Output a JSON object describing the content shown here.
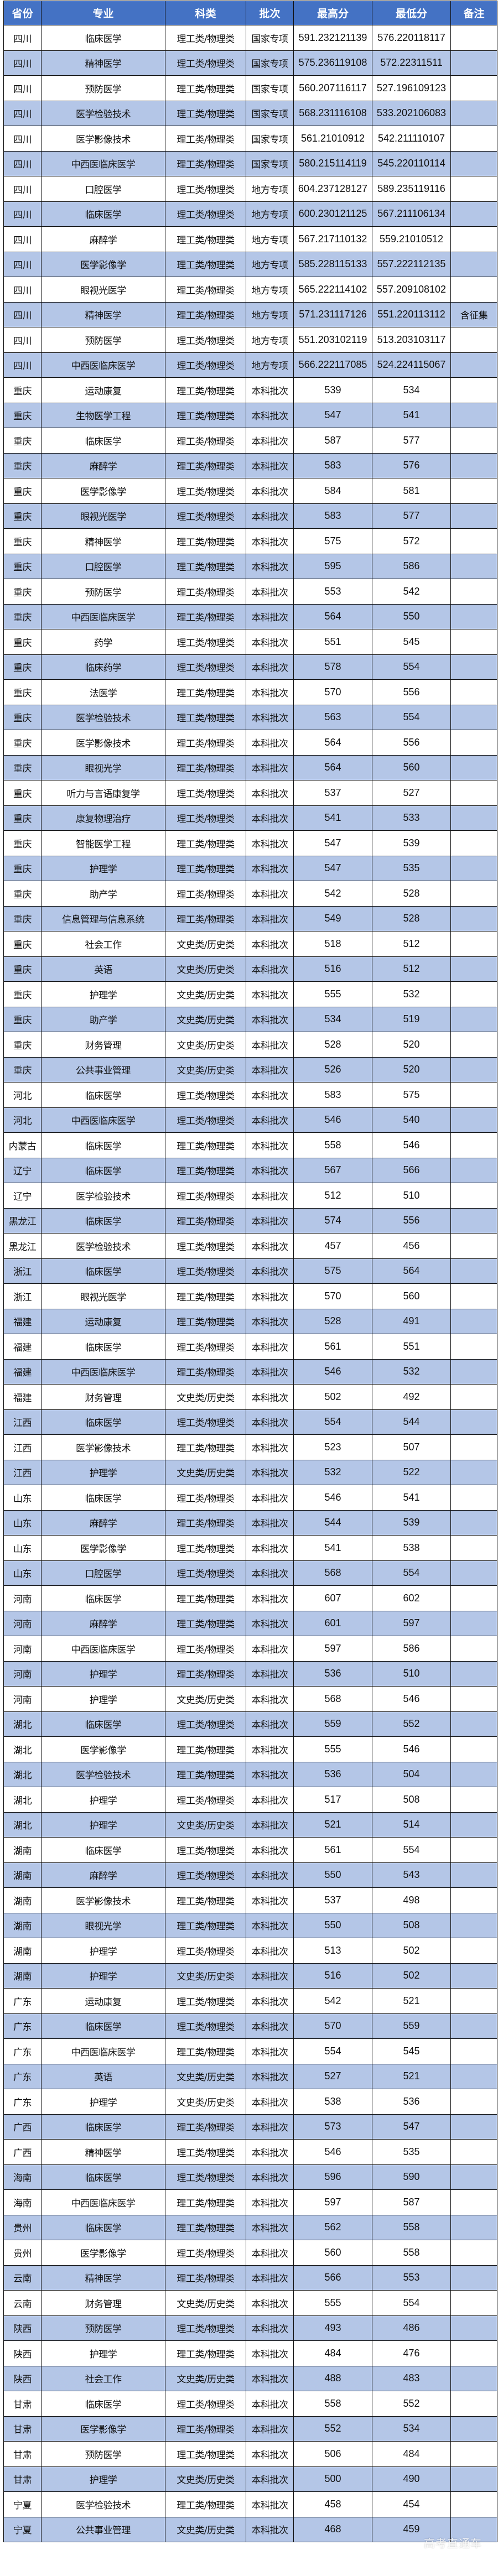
{
  "colors": {
    "header_bg": "#4472C4",
    "alt_row_bg": "#B4C6E7",
    "row_bg": "#FFFFFF"
  },
  "headers": [
    "省份",
    "专业",
    "科类",
    "批次",
    "最高分",
    "最低分",
    "备注"
  ],
  "rows": [
    [
      "四川",
      "临床医学",
      "理工类/物理类",
      "国家专项",
      "591.232121139",
      "576.220118117",
      ""
    ],
    [
      "四川",
      "精神医学",
      "理工类/物理类",
      "国家专项",
      "575.236119108",
      "572.22311511",
      ""
    ],
    [
      "四川",
      "预防医学",
      "理工类/物理类",
      "国家专项",
      "560.207116117",
      "527.196109123",
      ""
    ],
    [
      "四川",
      "医学检验技术",
      "理工类/物理类",
      "国家专项",
      "568.231116108",
      "533.202106083",
      ""
    ],
    [
      "四川",
      "医学影像技术",
      "理工类/物理类",
      "国家专项",
      "561.21010912",
      "542.211110107",
      ""
    ],
    [
      "四川",
      "中西医临床医学",
      "理工类/物理类",
      "国家专项",
      "580.215114119",
      "545.220110114",
      ""
    ],
    [
      "四川",
      "口腔医学",
      "理工类/物理类",
      "地方专项",
      "604.237128127",
      "589.235119116",
      ""
    ],
    [
      "四川",
      "临床医学",
      "理工类/物理类",
      "地方专项",
      "600.230121125",
      "567.211106134",
      ""
    ],
    [
      "四川",
      "麻醉学",
      "理工类/物理类",
      "地方专项",
      "567.217110132",
      "559.21010512",
      ""
    ],
    [
      "四川",
      "医学影像学",
      "理工类/物理类",
      "地方专项",
      "585.228115133",
      "557.222112135",
      ""
    ],
    [
      "四川",
      "眼视光医学",
      "理工类/物理类",
      "地方专项",
      "565.222114102",
      "557.209108102",
      ""
    ],
    [
      "四川",
      "精神医学",
      "理工类/物理类",
      "地方专项",
      "571.231117126",
      "551.220113112",
      "含征集"
    ],
    [
      "四川",
      "预防医学",
      "理工类/物理类",
      "地方专项",
      "551.203102119",
      "513.203103117",
      ""
    ],
    [
      "四川",
      "中西医临床医学",
      "理工类/物理类",
      "地方专项",
      "566.222117085",
      "524.224115067",
      ""
    ],
    [
      "重庆",
      "运动康复",
      "理工类/物理类",
      "本科批次",
      "539",
      "534",
      ""
    ],
    [
      "重庆",
      "生物医学工程",
      "理工类/物理类",
      "本科批次",
      "547",
      "541",
      ""
    ],
    [
      "重庆",
      "临床医学",
      "理工类/物理类",
      "本科批次",
      "587",
      "577",
      ""
    ],
    [
      "重庆",
      "麻醉学",
      "理工类/物理类",
      "本科批次",
      "583",
      "576",
      ""
    ],
    [
      "重庆",
      "医学影像学",
      "理工类/物理类",
      "本科批次",
      "584",
      "581",
      ""
    ],
    [
      "重庆",
      "眼视光医学",
      "理工类/物理类",
      "本科批次",
      "583",
      "577",
      ""
    ],
    [
      "重庆",
      "精神医学",
      "理工类/物理类",
      "本科批次",
      "575",
      "572",
      ""
    ],
    [
      "重庆",
      "口腔医学",
      "理工类/物理类",
      "本科批次",
      "595",
      "586",
      ""
    ],
    [
      "重庆",
      "预防医学",
      "理工类/物理类",
      "本科批次",
      "553",
      "542",
      ""
    ],
    [
      "重庆",
      "中西医临床医学",
      "理工类/物理类",
      "本科批次",
      "564",
      "550",
      ""
    ],
    [
      "重庆",
      "药学",
      "理工类/物理类",
      "本科批次",
      "551",
      "545",
      ""
    ],
    [
      "重庆",
      "临床药学",
      "理工类/物理类",
      "本科批次",
      "578",
      "554",
      ""
    ],
    [
      "重庆",
      "法医学",
      "理工类/物理类",
      "本科批次",
      "570",
      "556",
      ""
    ],
    [
      "重庆",
      "医学检验技术",
      "理工类/物理类",
      "本科批次",
      "563",
      "554",
      ""
    ],
    [
      "重庆",
      "医学影像技术",
      "理工类/物理类",
      "本科批次",
      "564",
      "556",
      ""
    ],
    [
      "重庆",
      "眼视光学",
      "理工类/物理类",
      "本科批次",
      "564",
      "560",
      ""
    ],
    [
      "重庆",
      "听力与言语康复学",
      "理工类/物理类",
      "本科批次",
      "537",
      "527",
      ""
    ],
    [
      "重庆",
      "康复物理治疗",
      "理工类/物理类",
      "本科批次",
      "541",
      "533",
      ""
    ],
    [
      "重庆",
      "智能医学工程",
      "理工类/物理类",
      "本科批次",
      "547",
      "539",
      ""
    ],
    [
      "重庆",
      "护理学",
      "理工类/物理类",
      "本科批次",
      "547",
      "535",
      ""
    ],
    [
      "重庆",
      "助产学",
      "理工类/物理类",
      "本科批次",
      "542",
      "528",
      ""
    ],
    [
      "重庆",
      "信息管理与信息系统",
      "理工类/物理类",
      "本科批次",
      "549",
      "528",
      ""
    ],
    [
      "重庆",
      "社会工作",
      "文史类/历史类",
      "本科批次",
      "518",
      "512",
      ""
    ],
    [
      "重庆",
      "英语",
      "文史类/历史类",
      "本科批次",
      "516",
      "512",
      ""
    ],
    [
      "重庆",
      "护理学",
      "文史类/历史类",
      "本科批次",
      "555",
      "532",
      ""
    ],
    [
      "重庆",
      "助产学",
      "文史类/历史类",
      "本科批次",
      "534",
      "519",
      ""
    ],
    [
      "重庆",
      "财务管理",
      "文史类/历史类",
      "本科批次",
      "528",
      "520",
      ""
    ],
    [
      "重庆",
      "公共事业管理",
      "文史类/历史类",
      "本科批次",
      "526",
      "520",
      ""
    ],
    [
      "河北",
      "临床医学",
      "理工类/物理类",
      "本科批次",
      "583",
      "575",
      ""
    ],
    [
      "河北",
      "中西医临床医学",
      "理工类/物理类",
      "本科批次",
      "546",
      "540",
      ""
    ],
    [
      "内蒙古",
      "临床医学",
      "理工类/物理类",
      "本科批次",
      "558",
      "546",
      ""
    ],
    [
      "辽宁",
      "临床医学",
      "理工类/物理类",
      "本科批次",
      "567",
      "566",
      ""
    ],
    [
      "辽宁",
      "医学检验技术",
      "理工类/物理类",
      "本科批次",
      "512",
      "510",
      ""
    ],
    [
      "黑龙江",
      "临床医学",
      "理工类/物理类",
      "本科批次",
      "574",
      "556",
      ""
    ],
    [
      "黑龙江",
      "医学检验技术",
      "理工类/物理类",
      "本科批次",
      "457",
      "456",
      ""
    ],
    [
      "浙江",
      "临床医学",
      "理工类/物理类",
      "本科批次",
      "575",
      "564",
      ""
    ],
    [
      "浙江",
      "眼视光医学",
      "理工类/物理类",
      "本科批次",
      "570",
      "560",
      ""
    ],
    [
      "福建",
      "运动康复",
      "理工类/物理类",
      "本科批次",
      "528",
      "491",
      ""
    ],
    [
      "福建",
      "临床医学",
      "理工类/物理类",
      "本科批次",
      "561",
      "551",
      ""
    ],
    [
      "福建",
      "中西医临床医学",
      "理工类/物理类",
      "本科批次",
      "546",
      "532",
      ""
    ],
    [
      "福建",
      "财务管理",
      "文史类/历史类",
      "本科批次",
      "502",
      "492",
      ""
    ],
    [
      "江西",
      "临床医学",
      "理工类/物理类",
      "本科批次",
      "554",
      "544",
      ""
    ],
    [
      "江西",
      "医学影像技术",
      "理工类/物理类",
      "本科批次",
      "523",
      "507",
      ""
    ],
    [
      "江西",
      "护理学",
      "文史类/历史类",
      "本科批次",
      "532",
      "522",
      ""
    ],
    [
      "山东",
      "临床医学",
      "理工类/物理类",
      "本科批次",
      "546",
      "541",
      ""
    ],
    [
      "山东",
      "麻醉学",
      "理工类/物理类",
      "本科批次",
      "544",
      "539",
      ""
    ],
    [
      "山东",
      "医学影像学",
      "理工类/物理类",
      "本科批次",
      "541",
      "538",
      ""
    ],
    [
      "山东",
      "口腔医学",
      "理工类/物理类",
      "本科批次",
      "568",
      "554",
      ""
    ],
    [
      "河南",
      "临床医学",
      "理工类/物理类",
      "本科批次",
      "607",
      "602",
      ""
    ],
    [
      "河南",
      "麻醉学",
      "理工类/物理类",
      "本科批次",
      "601",
      "597",
      ""
    ],
    [
      "河南",
      "中西医临床医学",
      "理工类/物理类",
      "本科批次",
      "597",
      "586",
      ""
    ],
    [
      "河南",
      "护理学",
      "理工类/物理类",
      "本科批次",
      "536",
      "510",
      ""
    ],
    [
      "河南",
      "护理学",
      "文史类/历史类",
      "本科批次",
      "568",
      "546",
      ""
    ],
    [
      "湖北",
      "临床医学",
      "理工类/物理类",
      "本科批次",
      "559",
      "552",
      ""
    ],
    [
      "湖北",
      "医学影像学",
      "理工类/物理类",
      "本科批次",
      "555",
      "546",
      ""
    ],
    [
      "湖北",
      "医学检验技术",
      "理工类/物理类",
      "本科批次",
      "536",
      "504",
      ""
    ],
    [
      "湖北",
      "护理学",
      "理工类/物理类",
      "本科批次",
      "517",
      "508",
      ""
    ],
    [
      "湖北",
      "护理学",
      "文史类/历史类",
      "本科批次",
      "521",
      "514",
      ""
    ],
    [
      "湖南",
      "临床医学",
      "理工类/物理类",
      "本科批次",
      "561",
      "554",
      ""
    ],
    [
      "湖南",
      "麻醉学",
      "理工类/物理类",
      "本科批次",
      "550",
      "543",
      ""
    ],
    [
      "湖南",
      "医学影像技术",
      "理工类/物理类",
      "本科批次",
      "537",
      "498",
      ""
    ],
    [
      "湖南",
      "眼视光学",
      "理工类/物理类",
      "本科批次",
      "550",
      "508",
      ""
    ],
    [
      "湖南",
      "护理学",
      "理工类/物理类",
      "本科批次",
      "513",
      "502",
      ""
    ],
    [
      "湖南",
      "护理学",
      "文史类/历史类",
      "本科批次",
      "516",
      "502",
      ""
    ],
    [
      "广东",
      "运动康复",
      "理工类/物理类",
      "本科批次",
      "542",
      "521",
      ""
    ],
    [
      "广东",
      "临床医学",
      "理工类/物理类",
      "本科批次",
      "570",
      "559",
      ""
    ],
    [
      "广东",
      "中西医临床医学",
      "理工类/物理类",
      "本科批次",
      "554",
      "545",
      ""
    ],
    [
      "广东",
      "英语",
      "文史类/历史类",
      "本科批次",
      "527",
      "521",
      ""
    ],
    [
      "广东",
      "护理学",
      "文史类/历史类",
      "本科批次",
      "538",
      "536",
      ""
    ],
    [
      "广西",
      "临床医学",
      "理工类/物理类",
      "本科批次",
      "573",
      "547",
      ""
    ],
    [
      "广西",
      "精神医学",
      "理工类/物理类",
      "本科批次",
      "546",
      "535",
      ""
    ],
    [
      "海南",
      "临床医学",
      "理工类/物理类",
      "本科批次",
      "596",
      "590",
      ""
    ],
    [
      "海南",
      "中西医临床医学",
      "理工类/物理类",
      "本科批次",
      "597",
      "587",
      ""
    ],
    [
      "贵州",
      "临床医学",
      "理工类/物理类",
      "本科批次",
      "562",
      "558",
      ""
    ],
    [
      "贵州",
      "医学影像学",
      "理工类/物理类",
      "本科批次",
      "560",
      "558",
      ""
    ],
    [
      "云南",
      "精神医学",
      "理工类/物理类",
      "本科批次",
      "566",
      "553",
      ""
    ],
    [
      "云南",
      "财务管理",
      "文史类/历史类",
      "本科批次",
      "555",
      "554",
      ""
    ],
    [
      "陕西",
      "预防医学",
      "理工类/物理类",
      "本科批次",
      "493",
      "486",
      ""
    ],
    [
      "陕西",
      "护理学",
      "理工类/物理类",
      "本科批次",
      "484",
      "476",
      ""
    ],
    [
      "陕西",
      "社会工作",
      "文史类/历史类",
      "本科批次",
      "488",
      "483",
      ""
    ],
    [
      "甘肃",
      "临床医学",
      "理工类/物理类",
      "本科批次",
      "558",
      "552",
      ""
    ],
    [
      "甘肃",
      "医学影像学",
      "理工类/物理类",
      "本科批次",
      "552",
      "534",
      ""
    ],
    [
      "甘肃",
      "预防医学",
      "理工类/物理类",
      "本科批次",
      "506",
      "484",
      ""
    ],
    [
      "甘肃",
      "护理学",
      "文史类/历史类",
      "本科批次",
      "500",
      "490",
      ""
    ],
    [
      "宁夏",
      "医学检验技术",
      "理工类/物理类",
      "本科批次",
      "458",
      "454",
      ""
    ],
    [
      "宁夏",
      "公共事业管理",
      "文史类/历史类",
      "本科批次",
      "468",
      "459",
      ""
    ]
  ],
  "watermark": "高考直通车"
}
